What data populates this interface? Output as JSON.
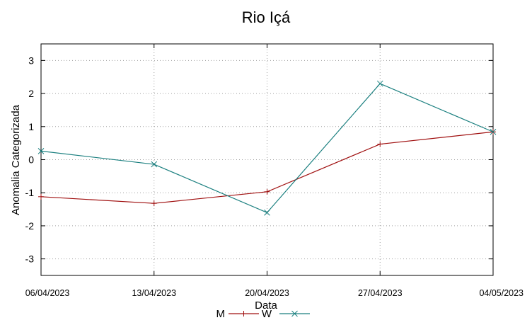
{
  "chart_data": {
    "type": "line",
    "title": "Rio Içá",
    "xlabel": "Data",
    "ylabel": "Anomalia Categorizada",
    "categories": [
      "06/04/2023",
      "13/04/2023",
      "20/04/2023",
      "27/04/2023",
      "04/05/2023"
    ],
    "ylim": [
      -3.5,
      3.5
    ],
    "yticks": [
      3,
      2,
      1,
      0,
      -1,
      -2,
      -3
    ],
    "ytick_labels": [
      "3",
      "2",
      "1",
      "0",
      "-1",
      "-2",
      "-3"
    ],
    "grid": true,
    "legend_position": "bottom-center",
    "series": [
      {
        "name": "M",
        "color": "#a01010",
        "marker": "plus",
        "values": [
          -1.12,
          -1.32,
          -0.97,
          0.47,
          0.84
        ]
      },
      {
        "name": "W",
        "color": "#1a7f7f",
        "marker": "cross",
        "values": [
          0.26,
          -0.14,
          -1.6,
          2.3,
          0.84
        ]
      }
    ]
  }
}
